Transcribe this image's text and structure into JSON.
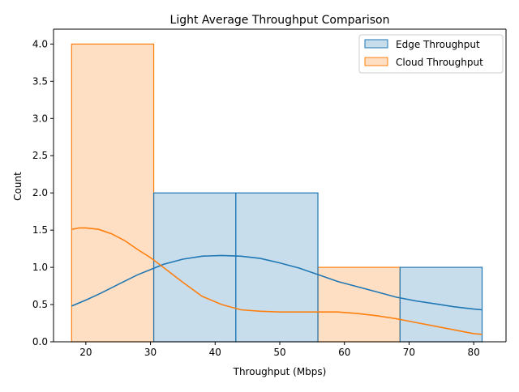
{
  "chart_data": {
    "type": "bar",
    "title": "Light Average Throughput Comparison",
    "xlabel": "Throughput (Mbps)",
    "ylabel": "Count",
    "xlim": [
      15,
      85
    ],
    "ylim": [
      0,
      4.2
    ],
    "xticks": [
      20,
      30,
      40,
      50,
      60,
      70,
      80
    ],
    "yticks": [
      0.0,
      0.5,
      1.0,
      1.5,
      2.0,
      2.5,
      3.0,
      3.5,
      4.0
    ],
    "ytick_labels": [
      "0.0",
      "0.5",
      "1.0",
      "1.5",
      "2.0",
      "2.5",
      "3.0",
      "3.5",
      "4.0"
    ],
    "grid": false,
    "legend_position": "top-right",
    "bins": [
      [
        17.8,
        30.5
      ],
      [
        30.5,
        43.2
      ],
      [
        43.2,
        55.9
      ],
      [
        55.9,
        68.6
      ],
      [
        68.6,
        81.3
      ]
    ],
    "series": [
      {
        "name": "Edge Throughput",
        "color": "#1f77b4",
        "counts": [
          0,
          2,
          2,
          0,
          1
        ],
        "kde": {
          "x": [
            17.8,
            20,
            22,
            25,
            28,
            30,
            32,
            35,
            38,
            41,
            44,
            47,
            50,
            53,
            56,
            59,
            62,
            65,
            68,
            71,
            74,
            77,
            80,
            81.3
          ],
          "y": [
            0.48,
            0.56,
            0.64,
            0.77,
            0.9,
            0.97,
            1.04,
            1.11,
            1.15,
            1.16,
            1.15,
            1.12,
            1.06,
            0.99,
            0.9,
            0.81,
            0.74,
            0.67,
            0.6,
            0.55,
            0.51,
            0.47,
            0.44,
            0.43
          ]
        }
      },
      {
        "name": "Cloud Throughput",
        "color": "#ff7f0e",
        "counts": [
          4,
          0,
          0,
          1,
          0
        ],
        "kde": {
          "x": [
            17.8,
            19,
            20,
            22,
            24,
            26,
            28,
            30,
            32,
            35,
            38,
            41,
            44,
            47,
            50,
            53,
            56,
            59,
            62,
            65,
            68,
            71,
            74,
            77,
            80,
            81.3
          ],
          "y": [
            1.51,
            1.53,
            1.53,
            1.51,
            1.45,
            1.36,
            1.24,
            1.13,
            1.0,
            0.8,
            0.61,
            0.5,
            0.43,
            0.41,
            0.4,
            0.4,
            0.4,
            0.4,
            0.38,
            0.35,
            0.31,
            0.26,
            0.21,
            0.16,
            0.11,
            0.1
          ]
        }
      }
    ]
  }
}
